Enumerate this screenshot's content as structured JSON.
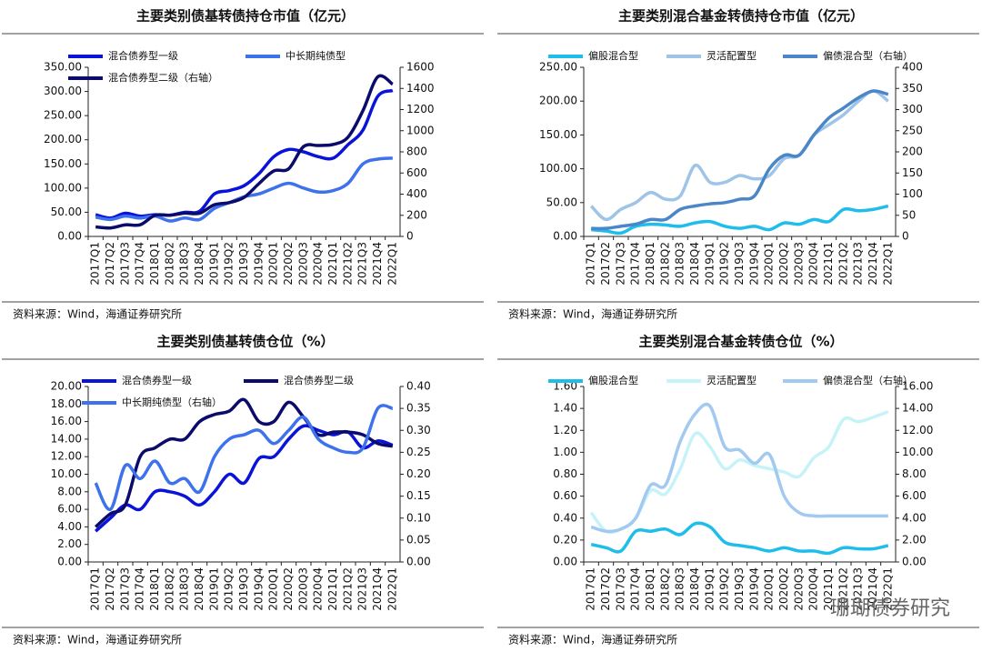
{
  "chart_data": [
    {
      "type": "line",
      "title": "主要类别债基转债持仓市值（亿元）",
      "categories": [
        "2017Q1",
        "2017Q2",
        "2017Q3",
        "2017Q4",
        "2018Q1",
        "2018Q2",
        "2018Q3",
        "2018Q4",
        "2019Q1",
        "2019Q2",
        "2019Q3",
        "2019Q4",
        "2020Q1",
        "2020Q2",
        "2020Q3",
        "2020Q4",
        "2021Q1",
        "2021Q2",
        "2021Q3",
        "2021Q4",
        "2022Q1"
      ],
      "series": [
        {
          "name": "混合债券型一级",
          "color": "#0a14d8",
          "values": [
            45,
            38,
            48,
            42,
            45,
            44,
            50,
            52,
            88,
            95,
            105,
            130,
            165,
            180,
            175,
            165,
            162,
            190,
            220,
            290,
            302
          ]
        },
        {
          "name": "中长期纯债型",
          "color": "#3d72ec",
          "values": [
            40,
            35,
            42,
            38,
            42,
            32,
            38,
            35,
            58,
            70,
            82,
            88,
            100,
            110,
            100,
            92,
            95,
            110,
            150,
            160,
            162
          ]
        },
        {
          "name": "混合债券型二级（右轴）",
          "color": "#0b0b6b",
          "axis": "y2",
          "values": [
            90,
            80,
            110,
            110,
            200,
            200,
            220,
            220,
            300,
            320,
            370,
            500,
            620,
            640,
            850,
            860,
            870,
            940,
            1190,
            1510,
            1440
          ]
        }
      ],
      "ylim": [
        0,
        350
      ],
      "yticks": [
        {
          "value": 0,
          "label": "0.00"
        },
        {
          "value": 50,
          "label": "50.00"
        },
        {
          "value": 100,
          "label": "100.00"
        },
        {
          "value": 150,
          "label": "150.00"
        },
        {
          "value": 200,
          "label": "200.00"
        },
        {
          "value": 250,
          "label": "250.00"
        },
        {
          "value": 300,
          "label": "300.00"
        },
        {
          "value": 350,
          "label": "350.00"
        }
      ],
      "y2lim": [
        0,
        1600
      ],
      "y2ticks": [
        0,
        200,
        400,
        600,
        800,
        1000,
        1200,
        1400,
        1600
      ],
      "source": "资料来源：Wind，海通证券研究所"
    },
    {
      "type": "line",
      "title": "主要类别混合基金转债持仓市值（亿元）",
      "categories": [
        "2017Q1",
        "2017Q2",
        "2017Q3",
        "2017Q4",
        "2018Q1",
        "2018Q2",
        "2018Q3",
        "2018Q4",
        "2019Q1",
        "2019Q2",
        "2019Q3",
        "2019Q4",
        "2020Q1",
        "2020Q2",
        "2020Q3",
        "2020Q4",
        "2021Q1",
        "2021Q2",
        "2021Q3",
        "2021Q4",
        "2022Q1"
      ],
      "series": [
        {
          "name": "偏股混合型",
          "color": "#1fbde9",
          "values": [
            10,
            8,
            5,
            15,
            18,
            17,
            15,
            20,
            22,
            15,
            12,
            15,
            10,
            20,
            18,
            25,
            22,
            40,
            38,
            40,
            45
          ]
        },
        {
          "name": "灵活配置型",
          "color": "#9ec4e8",
          "values": [
            45,
            25,
            40,
            50,
            65,
            55,
            60,
            105,
            80,
            80,
            90,
            85,
            90,
            115,
            120,
            150,
            165,
            180,
            200,
            215,
            200
          ]
        },
        {
          "name": "偏债混合型（右轴）",
          "color": "#4a86c8",
          "axis": "y2",
          "values": [
            19,
            19,
            24,
            29,
            40,
            40,
            64,
            72,
            77,
            80,
            88,
            96,
            160,
            192,
            192,
            240,
            280,
            304,
            328,
            344,
            336
          ]
        }
      ],
      "ylim": [
        0,
        250
      ],
      "yticks": [
        {
          "value": 0,
          "label": "0.00"
        },
        {
          "value": 50,
          "label": "50.00"
        },
        {
          "value": 100,
          "label": "100.00"
        },
        {
          "value": 150,
          "label": "150.00"
        },
        {
          "value": 200,
          "label": "200.00"
        },
        {
          "value": 250,
          "label": "250.00"
        }
      ],
      "y2lim": [
        0,
        400
      ],
      "y2ticks": [
        0,
        50,
        100,
        150,
        200,
        250,
        300,
        350,
        400
      ],
      "source": "资料来源：Wind，海通证券研究所"
    },
    {
      "type": "line",
      "title": "主要类别债基转债仓位（%）",
      "categories": [
        "2017Q1",
        "2017Q2",
        "2017Q3",
        "2017Q4",
        "2018Q1",
        "2018Q2",
        "2018Q3",
        "2018Q4",
        "2019Q1",
        "2019Q2",
        "2019Q3",
        "2019Q4",
        "2020Q1",
        "2020Q2",
        "2020Q3",
        "2020Q4",
        "2021Q1",
        "2021Q2",
        "2021Q3",
        "2021Q4",
        "2022Q1"
      ],
      "series": [
        {
          "name": "混合债券型一级",
          "color": "#0a14d8",
          "values": [
            3.5,
            5,
            6.5,
            6,
            8,
            8,
            7.5,
            6.5,
            8,
            10,
            9,
            11.8,
            12,
            14,
            15.5,
            15,
            14.5,
            14.8,
            13,
            13.8,
            13.3
          ]
        },
        {
          "name": "混合债券型二级",
          "color": "#0b0b6b",
          "values": [
            4,
            5.5,
            6.5,
            12,
            13,
            14,
            14,
            16,
            16.8,
            17.2,
            18.5,
            16,
            16,
            18.2,
            16.5,
            14.5,
            14.8,
            14.8,
            14.5,
            13.5,
            13.2
          ]
        },
        {
          "name": "中长期纯债型（右轴）",
          "color": "#3d72ec",
          "axis": "y2",
          "values": [
            0.18,
            0.12,
            0.22,
            0.19,
            0.23,
            0.18,
            0.19,
            0.16,
            0.24,
            0.28,
            0.29,
            0.3,
            0.27,
            0.3,
            0.33,
            0.28,
            0.26,
            0.25,
            0.26,
            0.35,
            0.35
          ]
        }
      ],
      "ylim": [
        0,
        20
      ],
      "yticks": [
        {
          "value": 0,
          "label": "0.00"
        },
        {
          "value": 2,
          "label": "2.00"
        },
        {
          "value": 4,
          "label": "4.00"
        },
        {
          "value": 6,
          "label": "6.00"
        },
        {
          "value": 8,
          "label": "8.00"
        },
        {
          "value": 10,
          "label": "10.00"
        },
        {
          "value": 12,
          "label": "12.00"
        },
        {
          "value": 14,
          "label": "14.00"
        },
        {
          "value": 16,
          "label": "16.00"
        },
        {
          "value": 18,
          "label": "18.00"
        },
        {
          "value": 20,
          "label": "20.00"
        }
      ],
      "y2lim": [
        0,
        0.4
      ],
      "y2ticks": [
        {
          "value": 0,
          "label": "0.00"
        },
        {
          "value": 0.05,
          "label": "0.05"
        },
        {
          "value": 0.1,
          "label": "0.10"
        },
        {
          "value": 0.15,
          "label": "0.15"
        },
        {
          "value": 0.2,
          "label": "0.20"
        },
        {
          "value": 0.25,
          "label": "0.25"
        },
        {
          "value": 0.3,
          "label": "0.30"
        },
        {
          "value": 0.35,
          "label": "0.35"
        },
        {
          "value": 0.4,
          "label": "0.40"
        }
      ],
      "source": "资料来源：Wind，海通证券研究所"
    },
    {
      "type": "line",
      "title": "主要类别混合基金转债仓位（%）",
      "categories": [
        "2017Q1",
        "2017Q2",
        "2017Q3",
        "2017Q4",
        "2018Q1",
        "2018Q2",
        "2018Q3",
        "2018Q4",
        "2019Q1",
        "2019Q2",
        "2019Q3",
        "2019Q4",
        "2020Q1",
        "2020Q2",
        "2020Q3",
        "2020Q4",
        "2021Q1",
        "2021Q2",
        "2021Q3",
        "2021Q4",
        "2022Q1"
      ],
      "series": [
        {
          "name": "偏股混合型",
          "color": "#1fbde9",
          "values": [
            0.16,
            0.13,
            0.1,
            0.28,
            0.28,
            0.3,
            0.25,
            0.35,
            0.32,
            0.18,
            0.15,
            0.13,
            0.1,
            0.13,
            0.1,
            0.1,
            0.08,
            0.13,
            0.12,
            0.12,
            0.15
          ]
        },
        {
          "name": "灵活配置型",
          "color": "#c6f3f8",
          "values": [
            0.45,
            0.28,
            0.3,
            0.4,
            0.65,
            0.62,
            0.85,
            1.17,
            1.05,
            0.85,
            0.93,
            0.88,
            0.85,
            0.82,
            0.78,
            0.95,
            1.05,
            1.3,
            1.28,
            1.32,
            1.37
          ]
        },
        {
          "name": "偏债混合型（右轴）",
          "color": "#a2c9f0",
          "axis": "y2",
          "values": [
            3.2,
            2.8,
            3,
            4,
            7,
            7,
            11,
            13.5,
            14.2,
            10.5,
            10.2,
            9,
            9.8,
            6,
            4.5,
            4.2,
            4.2,
            4.2,
            4.2,
            4.2,
            4.2
          ]
        }
      ],
      "ylim": [
        0,
        1.6
      ],
      "yticks": [
        {
          "value": 0,
          "label": "0.00"
        },
        {
          "value": 0.2,
          "label": "0.20"
        },
        {
          "value": 0.4,
          "label": "0.40"
        },
        {
          "value": 0.6,
          "label": "0.60"
        },
        {
          "value": 0.8,
          "label": "0.80"
        },
        {
          "value": 1,
          "label": "1.00"
        },
        {
          "value": 1.2,
          "label": "1.20"
        },
        {
          "value": 1.4,
          "label": "1.40"
        },
        {
          "value": 1.6,
          "label": "1.60"
        }
      ],
      "y2lim": [
        0,
        16
      ],
      "y2ticks": [
        {
          "value": 0,
          "label": "0.00"
        },
        {
          "value": 2,
          "label": "2.00"
        },
        {
          "value": 4,
          "label": "4.00"
        },
        {
          "value": 6,
          "label": "6.00"
        },
        {
          "value": 8,
          "label": "8.00"
        },
        {
          "value": 10,
          "label": "10.00"
        },
        {
          "value": 12,
          "label": "12.00"
        },
        {
          "value": 14,
          "label": "14.00"
        },
        {
          "value": 16,
          "label": "16.00"
        }
      ],
      "watermark": "珊瑚债券研究",
      "source": "资料来源：Wind，海通证券研究所"
    }
  ]
}
